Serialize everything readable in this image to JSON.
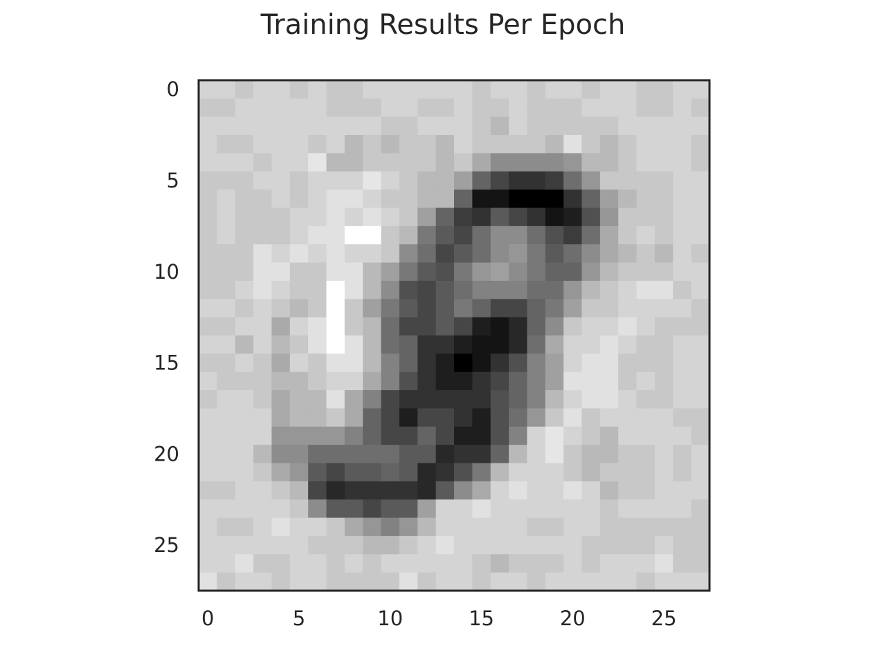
{
  "chart_data": {
    "type": "heatmap",
    "title": "Training Results Per Epoch",
    "xlabel": "",
    "ylabel": "",
    "colormap": "gray",
    "scale": "0 = black, 255 = white",
    "xlim": [
      -0.5,
      27.5
    ],
    "ylim": [
      27.5,
      -0.5
    ],
    "xticks": [
      0,
      5,
      10,
      15,
      20,
      25
    ],
    "yticks": [
      0,
      5,
      10,
      15,
      20,
      25
    ],
    "xtick_labels": [
      "0",
      "5",
      "10",
      "15",
      "20",
      "25"
    ],
    "ytick_labels": [
      "0",
      "5",
      "10",
      "15",
      "20",
      "25"
    ],
    "grid": false,
    "values": [
      [
        212,
        212,
        200,
        212,
        212,
        200,
        212,
        200,
        200,
        212,
        212,
        212,
        212,
        212,
        212,
        200,
        212,
        212,
        200,
        212,
        212,
        200,
        212,
        212,
        200,
        200,
        212,
        212
      ],
      [
        200,
        200,
        212,
        212,
        212,
        212,
        212,
        200,
        200,
        200,
        212,
        212,
        200,
        200,
        212,
        200,
        200,
        212,
        200,
        200,
        200,
        212,
        212,
        212,
        200,
        200,
        212,
        200
      ],
      [
        212,
        212,
        212,
        212,
        212,
        212,
        212,
        212,
        212,
        212,
        200,
        200,
        212,
        212,
        212,
        200,
        185,
        212,
        200,
        200,
        200,
        200,
        200,
        212,
        212,
        212,
        212,
        212
      ],
      [
        212,
        200,
        200,
        212,
        212,
        212,
        200,
        212,
        185,
        200,
        185,
        200,
        200,
        185,
        212,
        200,
        200,
        200,
        200,
        185,
        225,
        200,
        185,
        200,
        212,
        212,
        212,
        200
      ],
      [
        212,
        212,
        212,
        200,
        212,
        212,
        230,
        185,
        185,
        200,
        200,
        200,
        200,
        185,
        200,
        170,
        140,
        140,
        140,
        140,
        150,
        185,
        185,
        200,
        212,
        212,
        212,
        200
      ],
      [
        200,
        200,
        200,
        212,
        212,
        200,
        212,
        212,
        212,
        230,
        212,
        200,
        185,
        185,
        160,
        100,
        70,
        50,
        50,
        60,
        110,
        150,
        200,
        200,
        200,
        200,
        212,
        212
      ],
      [
        200,
        212,
        200,
        200,
        212,
        200,
        212,
        225,
        225,
        212,
        200,
        200,
        185,
        185,
        100,
        20,
        20,
        0,
        0,
        0,
        50,
        100,
        160,
        185,
        200,
        200,
        212,
        212
      ],
      [
        200,
        212,
        200,
        200,
        200,
        212,
        212,
        225,
        212,
        225,
        212,
        200,
        160,
        100,
        60,
        50,
        90,
        70,
        50,
        20,
        30,
        80,
        150,
        200,
        200,
        200,
        212,
        212
      ],
      [
        200,
        212,
        200,
        200,
        200,
        212,
        225,
        225,
        255,
        255,
        200,
        185,
        120,
        90,
        70,
        110,
        140,
        140,
        110,
        80,
        60,
        110,
        170,
        200,
        212,
        200,
        212,
        212
      ],
      [
        200,
        200,
        200,
        225,
        212,
        225,
        212,
        225,
        212,
        212,
        200,
        140,
        110,
        70,
        90,
        110,
        140,
        150,
        120,
        90,
        110,
        140,
        170,
        185,
        200,
        185,
        212,
        200
      ],
      [
        200,
        200,
        200,
        225,
        225,
        200,
        200,
        225,
        225,
        185,
        160,
        120,
        90,
        80,
        120,
        150,
        160,
        140,
        120,
        100,
        100,
        150,
        185,
        200,
        200,
        200,
        212,
        212
      ],
      [
        200,
        200,
        212,
        225,
        212,
        200,
        200,
        255,
        225,
        185,
        140,
        80,
        70,
        90,
        110,
        130,
        130,
        130,
        110,
        110,
        150,
        185,
        200,
        212,
        225,
        225,
        200,
        212
      ],
      [
        212,
        212,
        200,
        212,
        200,
        185,
        200,
        255,
        200,
        160,
        120,
        90,
        70,
        90,
        120,
        100,
        70,
        70,
        100,
        120,
        160,
        200,
        200,
        212,
        212,
        212,
        212,
        200
      ],
      [
        200,
        200,
        212,
        212,
        170,
        212,
        225,
        255,
        200,
        185,
        110,
        70,
        70,
        90,
        70,
        30,
        20,
        40,
        100,
        140,
        200,
        212,
        212,
        225,
        212,
        200,
        200,
        200
      ],
      [
        212,
        212,
        185,
        212,
        185,
        200,
        225,
        255,
        225,
        185,
        110,
        100,
        50,
        50,
        30,
        20,
        20,
        40,
        110,
        170,
        212,
        212,
        225,
        212,
        200,
        200,
        212,
        212
      ],
      [
        200,
        200,
        212,
        200,
        170,
        212,
        200,
        225,
        225,
        185,
        130,
        100,
        50,
        30,
        0,
        20,
        50,
        80,
        130,
        160,
        212,
        225,
        225,
        200,
        200,
        200,
        212,
        212
      ],
      [
        212,
        200,
        200,
        200,
        185,
        185,
        200,
        212,
        212,
        170,
        130,
        80,
        50,
        30,
        30,
        50,
        70,
        100,
        130,
        160,
        225,
        225,
        225,
        200,
        212,
        200,
        212,
        212
      ],
      [
        200,
        212,
        212,
        200,
        170,
        185,
        185,
        225,
        170,
        130,
        70,
        50,
        50,
        50,
        50,
        50,
        80,
        100,
        130,
        185,
        212,
        225,
        225,
        212,
        200,
        200,
        212,
        212
      ],
      [
        212,
        212,
        212,
        212,
        170,
        185,
        185,
        200,
        170,
        100,
        70,
        30,
        70,
        70,
        50,
        30,
        80,
        110,
        150,
        200,
        225,
        200,
        212,
        212,
        212,
        212,
        200,
        200
      ],
      [
        212,
        212,
        212,
        212,
        150,
        150,
        150,
        150,
        130,
        100,
        70,
        70,
        100,
        70,
        30,
        30,
        80,
        130,
        212,
        230,
        212,
        200,
        185,
        212,
        212,
        212,
        212,
        200
      ],
      [
        212,
        212,
        212,
        185,
        140,
        140,
        110,
        110,
        110,
        110,
        110,
        90,
        90,
        40,
        50,
        50,
        100,
        185,
        212,
        230,
        200,
        185,
        185,
        200,
        200,
        212,
        200,
        212
      ],
      [
        212,
        212,
        212,
        200,
        170,
        150,
        90,
        70,
        90,
        90,
        100,
        90,
        40,
        50,
        80,
        120,
        185,
        212,
        212,
        212,
        200,
        185,
        200,
        200,
        200,
        212,
        200,
        212
      ],
      [
        200,
        200,
        212,
        212,
        200,
        185,
        70,
        40,
        50,
        50,
        50,
        50,
        40,
        90,
        140,
        170,
        212,
        225,
        212,
        212,
        225,
        212,
        185,
        200,
        200,
        212,
        212,
        212
      ],
      [
        212,
        212,
        212,
        212,
        212,
        200,
        140,
        90,
        90,
        70,
        90,
        90,
        160,
        212,
        212,
        225,
        212,
        212,
        212,
        212,
        212,
        212,
        200,
        212,
        212,
        212,
        212,
        200
      ],
      [
        212,
        200,
        200,
        212,
        225,
        212,
        212,
        200,
        170,
        150,
        130,
        150,
        185,
        212,
        212,
        212,
        212,
        212,
        200,
        200,
        212,
        212,
        200,
        200,
        200,
        200,
        200,
        200
      ],
      [
        212,
        212,
        212,
        212,
        212,
        212,
        200,
        200,
        200,
        185,
        185,
        200,
        212,
        225,
        212,
        212,
        212,
        212,
        212,
        212,
        212,
        200,
        200,
        200,
        200,
        212,
        200,
        200
      ],
      [
        212,
        212,
        225,
        200,
        200,
        212,
        212,
        200,
        212,
        200,
        212,
        212,
        212,
        212,
        212,
        200,
        185,
        200,
        200,
        200,
        212,
        200,
        212,
        212,
        212,
        225,
        200,
        200
      ],
      [
        225,
        200,
        212,
        212,
        200,
        212,
        212,
        200,
        200,
        200,
        200,
        225,
        200,
        212,
        212,
        200,
        212,
        212,
        200,
        212,
        212,
        212,
        212,
        212,
        200,
        212,
        212,
        212
      ]
    ]
  }
}
